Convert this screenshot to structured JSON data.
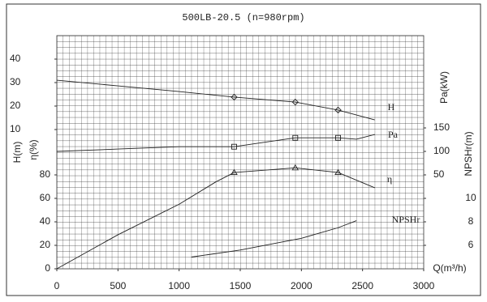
{
  "chart_data": {
    "type": "line",
    "title": "500LB-20.5 (n=980rpm)",
    "x_label": "Q(m³/h)",
    "xlim": [
      0,
      3000
    ],
    "xticks": [
      0,
      500,
      1000,
      1500,
      2000,
      2500,
      3000
    ],
    "grid": true,
    "color": "#222222",
    "axes": [
      {
        "label": "H(m)",
        "ylim": [
          10,
          40
        ],
        "yticks": [
          10,
          20,
          30,
          40
        ]
      },
      {
        "label": "η(%)",
        "ylim": [
          0,
          80
        ],
        "yticks": [
          0,
          20,
          40,
          60,
          80
        ]
      },
      {
        "label": "Pa(kW)",
        "ylim": [
          50,
          150
        ],
        "yticks": [
          50,
          100,
          150
        ]
      },
      {
        "label": "NPSHr(m)",
        "ylim": [
          6,
          10
        ],
        "yticks": [
          6,
          8,
          10
        ]
      }
    ],
    "series": [
      {
        "name": "H",
        "axis": 0,
        "x": [
          0,
          500,
          1000,
          1450,
          1950,
          2300,
          2600
        ],
        "values": [
          31,
          28.6,
          26.2,
          23.8,
          21.7,
          18.3,
          14.1
        ],
        "markers": [
          null,
          null,
          null,
          "diamond",
          "diamond",
          "diamond",
          null
        ]
      },
      {
        "name": "Pa",
        "axis": 2,
        "x": [
          0,
          500,
          1000,
          1450,
          1950,
          2300,
          2450,
          2600
        ],
        "values": [
          100,
          105,
          110,
          110,
          129,
          129,
          126,
          136
        ],
        "markers": [
          null,
          null,
          null,
          "square",
          "square",
          "square",
          null,
          null
        ]
      },
      {
        "name": "η",
        "axis": 1,
        "x": [
          0,
          500,
          1000,
          1300,
          1450,
          1950,
          2300,
          2600
        ],
        "values": [
          0,
          29,
          55,
          74,
          82,
          86,
          82,
          69
        ],
        "markers": [
          null,
          null,
          null,
          null,
          "triangle",
          "triangle",
          "triangle",
          null
        ]
      },
      {
        "name": "NPSHr",
        "axis": 3,
        "x": [
          1100,
          1500,
          2000,
          2300,
          2450
        ],
        "values": [
          5.0,
          5.6,
          6.6,
          7.5,
          8.1
        ],
        "markers": [
          null,
          null,
          null,
          null,
          null
        ]
      }
    ]
  }
}
